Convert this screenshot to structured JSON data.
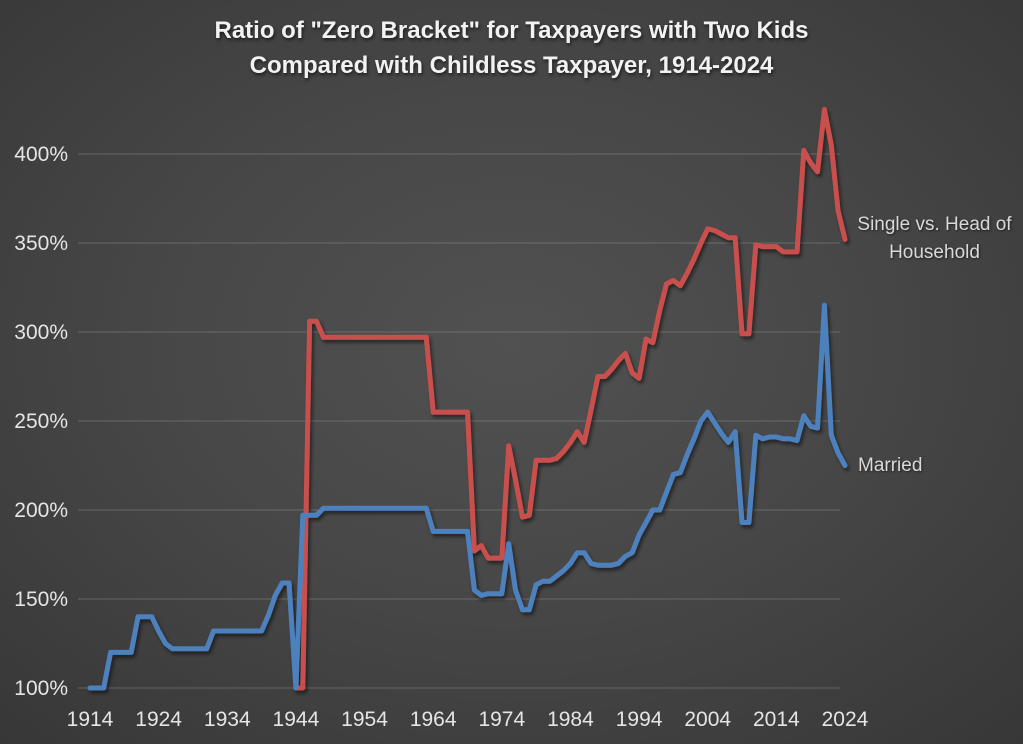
{
  "title": {
    "line1": "Ratio of \"Zero Bracket\" for Taxpayers with Two Kids",
    "line2": "Compared with Childless Taxpayer, 1914-2024"
  },
  "colors": {
    "single_vs_hoh_line": "#C9504D",
    "married_line": "#4E81BD",
    "axis_text": "#E5E5E5",
    "gridline": "#9B9B9B",
    "title_text": "#F2F2F2",
    "series_label_text": "#D9D9D9",
    "background_center": "#4F4F4F",
    "background_edge": "#262626"
  },
  "chart_data": {
    "type": "line",
    "title": "Ratio of \"Zero Bracket\" for Taxpayers with Two Kids Compared with Childless Taxpayer, 1914-2024",
    "xlabel": "",
    "ylabel": "",
    "grid": "horizontal",
    "legend_position": "labels-at-line-ends",
    "ylim": [
      100,
      430
    ],
    "xlim": [
      1914,
      2024
    ],
    "y_ticks": [
      {
        "value": 100,
        "label": "100%"
      },
      {
        "value": 150,
        "label": "150%"
      },
      {
        "value": 200,
        "label": "200%"
      },
      {
        "value": 250,
        "label": "250%"
      },
      {
        "value": 300,
        "label": "300%"
      },
      {
        "value": 350,
        "label": "350%"
      },
      {
        "value": 400,
        "label": "400%"
      }
    ],
    "x_ticks": [
      {
        "value": 1914,
        "label": "1914"
      },
      {
        "value": 1924,
        "label": "1924"
      },
      {
        "value": 1934,
        "label": "1934"
      },
      {
        "value": 1944,
        "label": "1944"
      },
      {
        "value": 1954,
        "label": "1954"
      },
      {
        "value": 1964,
        "label": "1964"
      },
      {
        "value": 1974,
        "label": "1974"
      },
      {
        "value": 1984,
        "label": "1984"
      },
      {
        "value": 1994,
        "label": "1994"
      },
      {
        "value": 2004,
        "label": "2004"
      },
      {
        "value": 2014,
        "label": "2014"
      },
      {
        "value": 2024,
        "label": "2024"
      }
    ],
    "x": [
      1914,
      1915,
      1916,
      1917,
      1918,
      1919,
      1920,
      1921,
      1922,
      1923,
      1924,
      1925,
      1926,
      1927,
      1928,
      1929,
      1930,
      1931,
      1932,
      1933,
      1934,
      1935,
      1936,
      1937,
      1938,
      1939,
      1940,
      1941,
      1942,
      1943,
      1944,
      1945,
      1946,
      1947,
      1948,
      1949,
      1950,
      1951,
      1952,
      1953,
      1954,
      1955,
      1956,
      1957,
      1958,
      1959,
      1960,
      1961,
      1962,
      1963,
      1964,
      1965,
      1966,
      1967,
      1968,
      1969,
      1970,
      1971,
      1972,
      1973,
      1974,
      1975,
      1976,
      1977,
      1978,
      1979,
      1980,
      1981,
      1982,
      1983,
      1984,
      1985,
      1986,
      1987,
      1988,
      1989,
      1990,
      1991,
      1992,
      1993,
      1994,
      1995,
      1996,
      1997,
      1998,
      1999,
      2000,
      2001,
      2002,
      2003,
      2004,
      2005,
      2006,
      2007,
      2008,
      2009,
      2010,
      2011,
      2012,
      2013,
      2014,
      2015,
      2016,
      2017,
      2018,
      2019,
      2020,
      2021,
      2022,
      2023,
      2024
    ],
    "series": [
      {
        "name": "Single vs. Head of Household",
        "label": "Single vs. Head of Household",
        "label_lines": [
          "Single vs. Head of",
          "Household"
        ],
        "color": "#C9504D",
        "values": [
          null,
          null,
          null,
          null,
          null,
          null,
          null,
          null,
          null,
          null,
          null,
          null,
          null,
          null,
          null,
          null,
          null,
          null,
          null,
          null,
          null,
          null,
          null,
          null,
          null,
          null,
          null,
          null,
          null,
          null,
          100,
          100,
          306,
          306,
          297,
          297,
          297,
          297,
          297,
          297,
          297,
          297,
          297,
          297,
          297,
          297,
          297,
          297,
          297,
          297,
          255,
          255,
          255,
          255,
          255,
          255,
          177,
          180,
          173,
          173,
          173,
          236,
          217,
          196,
          197,
          228,
          228,
          228,
          229,
          233,
          238,
          244,
          238,
          256,
          275,
          275,
          279,
          284,
          288,
          277,
          274,
          296,
          294,
          312,
          327,
          329,
          326,
          333,
          341,
          350,
          358,
          357,
          355,
          353,
          353,
          299,
          299,
          349,
          348,
          348,
          348,
          345,
          345,
          345,
          402,
          395,
          390,
          425,
          405,
          368,
          352
        ]
      },
      {
        "name": "Married",
        "label": "Married",
        "label_lines": [
          "Married"
        ],
        "color": "#4E81BD",
        "values": [
          100,
          100,
          100,
          120,
          120,
          120,
          120,
          140,
          140,
          140,
          132,
          125,
          122,
          122,
          122,
          122,
          122,
          122,
          132,
          132,
          132,
          132,
          132,
          132,
          132,
          132,
          141,
          152,
          159,
          159,
          100,
          197,
          197,
          197,
          201,
          201,
          201,
          201,
          201,
          201,
          201,
          201,
          201,
          201,
          201,
          201,
          201,
          201,
          201,
          201,
          188,
          188,
          188,
          188,
          188,
          188,
          155,
          152,
          153,
          153,
          153,
          181,
          155,
          144,
          144,
          158,
          160,
          160,
          163,
          166,
          170,
          176,
          176,
          170,
          169,
          169,
          169,
          170,
          174,
          176,
          186,
          193,
          200,
          200,
          210,
          220,
          221,
          231,
          240,
          250,
          255,
          249,
          243,
          238,
          244,
          193,
          193,
          242,
          240,
          241,
          241,
          240,
          240,
          239,
          253,
          247,
          246,
          315,
          242,
          232,
          225
        ]
      }
    ]
  }
}
